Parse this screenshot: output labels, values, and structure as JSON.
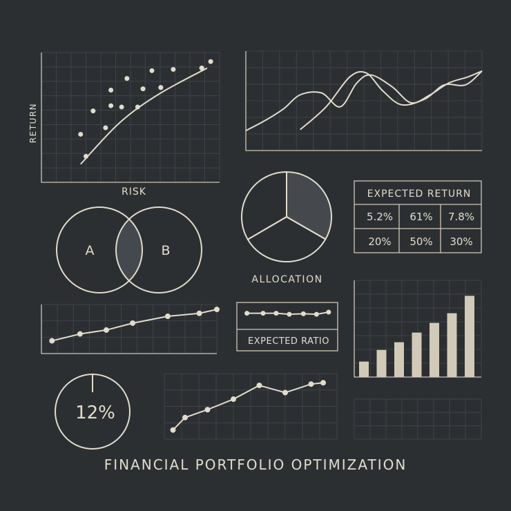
{
  "title": "FINANCIAL PORTFOLIO OPTIMIZATION",
  "colors": {
    "background": "#2c2f32",
    "ink": "#e2dccd",
    "grid": "#3e4247",
    "fill": "#45494d"
  },
  "chart_data": [
    {
      "type": "scatter",
      "xlabel": "RISK",
      "ylabel": "RETURN",
      "xlim": [
        0,
        10
      ],
      "ylim": [
        0,
        10
      ],
      "points": [
        {
          "x": 2.2,
          "y": 3.7
        },
        {
          "x": 2.9,
          "y": 5.5
        },
        {
          "x": 3.6,
          "y": 4.2
        },
        {
          "x": 3.9,
          "y": 5.9
        },
        {
          "x": 3.9,
          "y": 7.1
        },
        {
          "x": 4.5,
          "y": 5.8
        },
        {
          "x": 4.8,
          "y": 8.0
        },
        {
          "x": 5.7,
          "y": 7.2
        },
        {
          "x": 6.2,
          "y": 8.6
        },
        {
          "x": 6.7,
          "y": 7.3
        },
        {
          "x": 7.4,
          "y": 8.7
        },
        {
          "x": 9.0,
          "y": 8.8
        },
        {
          "x": 9.5,
          "y": 9.3
        }
      ],
      "frontier": [
        {
          "x": 2.2,
          "y": 1.4
        },
        {
          "x": 4.4,
          "y": 4.6
        },
        {
          "x": 6.6,
          "y": 6.8
        },
        {
          "x": 9.3,
          "y": 8.8
        }
      ],
      "frontier_markers": [
        {
          "x": 2.5,
          "y": 2.0
        },
        {
          "x": 5.4,
          "y": 5.8
        },
        {
          "x": 6.7,
          "y": 7.3
        },
        {
          "x": 9.0,
          "y": 8.8
        }
      ]
    },
    {
      "type": "line",
      "xlim": [
        0,
        10
      ],
      "ylim": [
        0,
        10
      ],
      "series": [
        {
          "values": [
            {
              "x": 0.0,
              "y": 2.0
            },
            {
              "x": 0.8,
              "y": 3.0
            },
            {
              "x": 1.6,
              "y": 4.2
            },
            {
              "x": 2.3,
              "y": 5.6
            },
            {
              "x": 3.2,
              "y": 5.8
            },
            {
              "x": 4.0,
              "y": 4.4
            },
            {
              "x": 4.7,
              "y": 6.8
            },
            {
              "x": 5.3,
              "y": 7.6
            },
            {
              "x": 6.2,
              "y": 6.4
            },
            {
              "x": 7.0,
              "y": 4.8
            },
            {
              "x": 7.8,
              "y": 5.6
            },
            {
              "x": 8.6,
              "y": 6.8
            },
            {
              "x": 9.4,
              "y": 7.4
            },
            {
              "x": 10.0,
              "y": 8.0
            }
          ]
        },
        {
          "values": [
            {
              "x": 2.3,
              "y": 2.1
            },
            {
              "x": 3.4,
              "y": 4.4
            },
            {
              "x": 4.4,
              "y": 7.4
            },
            {
              "x": 5.1,
              "y": 7.8
            },
            {
              "x": 5.8,
              "y": 6.0
            },
            {
              "x": 6.6,
              "y": 4.6
            },
            {
              "x": 7.6,
              "y": 5.2
            },
            {
              "x": 8.4,
              "y": 6.6
            },
            {
              "x": 9.3,
              "y": 6.6
            },
            {
              "x": 10.0,
              "y": 8.0
            }
          ]
        }
      ]
    },
    {
      "type": "venn",
      "sets": [
        "A",
        "B"
      ]
    },
    {
      "type": "pie",
      "xlabel": "ALLOCATION",
      "values": [
        33.3,
        33.3,
        33.4
      ],
      "highlight": 0
    },
    {
      "type": "table",
      "title": "EXPECTED RETURN",
      "rows": [
        [
          "5.2%",
          "61%",
          "7.8%"
        ],
        [
          "20%",
          "50%",
          "30%"
        ]
      ]
    },
    {
      "type": "line",
      "xlim": [
        0,
        10
      ],
      "ylim": [
        0,
        10
      ],
      "values": [
        {
          "x": 0.6,
          "y": 2.6
        },
        {
          "x": 2.2,
          "y": 4.0
        },
        {
          "x": 3.7,
          "y": 4.8
        },
        {
          "x": 5.2,
          "y": 6.2
        },
        {
          "x": 7.2,
          "y": 7.6
        },
        {
          "x": 9.0,
          "y": 8.2
        },
        {
          "x": 10.0,
          "y": 9.0
        }
      ]
    },
    {
      "type": "line",
      "xlabel": "EXPECTED RATIO",
      "xlim": [
        0,
        10
      ],
      "ylim": [
        0,
        10
      ],
      "values": [
        {
          "x": 1.0,
          "y": 6.0
        },
        {
          "x": 2.6,
          "y": 6.0
        },
        {
          "x": 3.9,
          "y": 6.0
        },
        {
          "x": 5.2,
          "y": 5.6
        },
        {
          "x": 6.6,
          "y": 5.8
        },
        {
          "x": 7.9,
          "y": 5.6
        },
        {
          "x": 9.1,
          "y": 6.4
        }
      ]
    },
    {
      "type": "bar",
      "ylim": [
        0,
        10
      ],
      "values": [
        1.6,
        2.8,
        3.6,
        4.6,
        5.6,
        6.6,
        8.4
      ]
    },
    {
      "type": "gauge",
      "label": "12%",
      "value": 12
    },
    {
      "type": "line",
      "xlim": [
        0,
        10
      ],
      "ylim": [
        0,
        10
      ],
      "values": [
        {
          "x": 0.5,
          "y": 1.4
        },
        {
          "x": 1.2,
          "y": 3.3
        },
        {
          "x": 2.5,
          "y": 4.5
        },
        {
          "x": 4.0,
          "y": 6.1
        },
        {
          "x": 5.5,
          "y": 8.2
        },
        {
          "x": 7.0,
          "y": 7.1
        },
        {
          "x": 8.5,
          "y": 8.4
        },
        {
          "x": 9.2,
          "y": 8.6
        }
      ]
    }
  ]
}
